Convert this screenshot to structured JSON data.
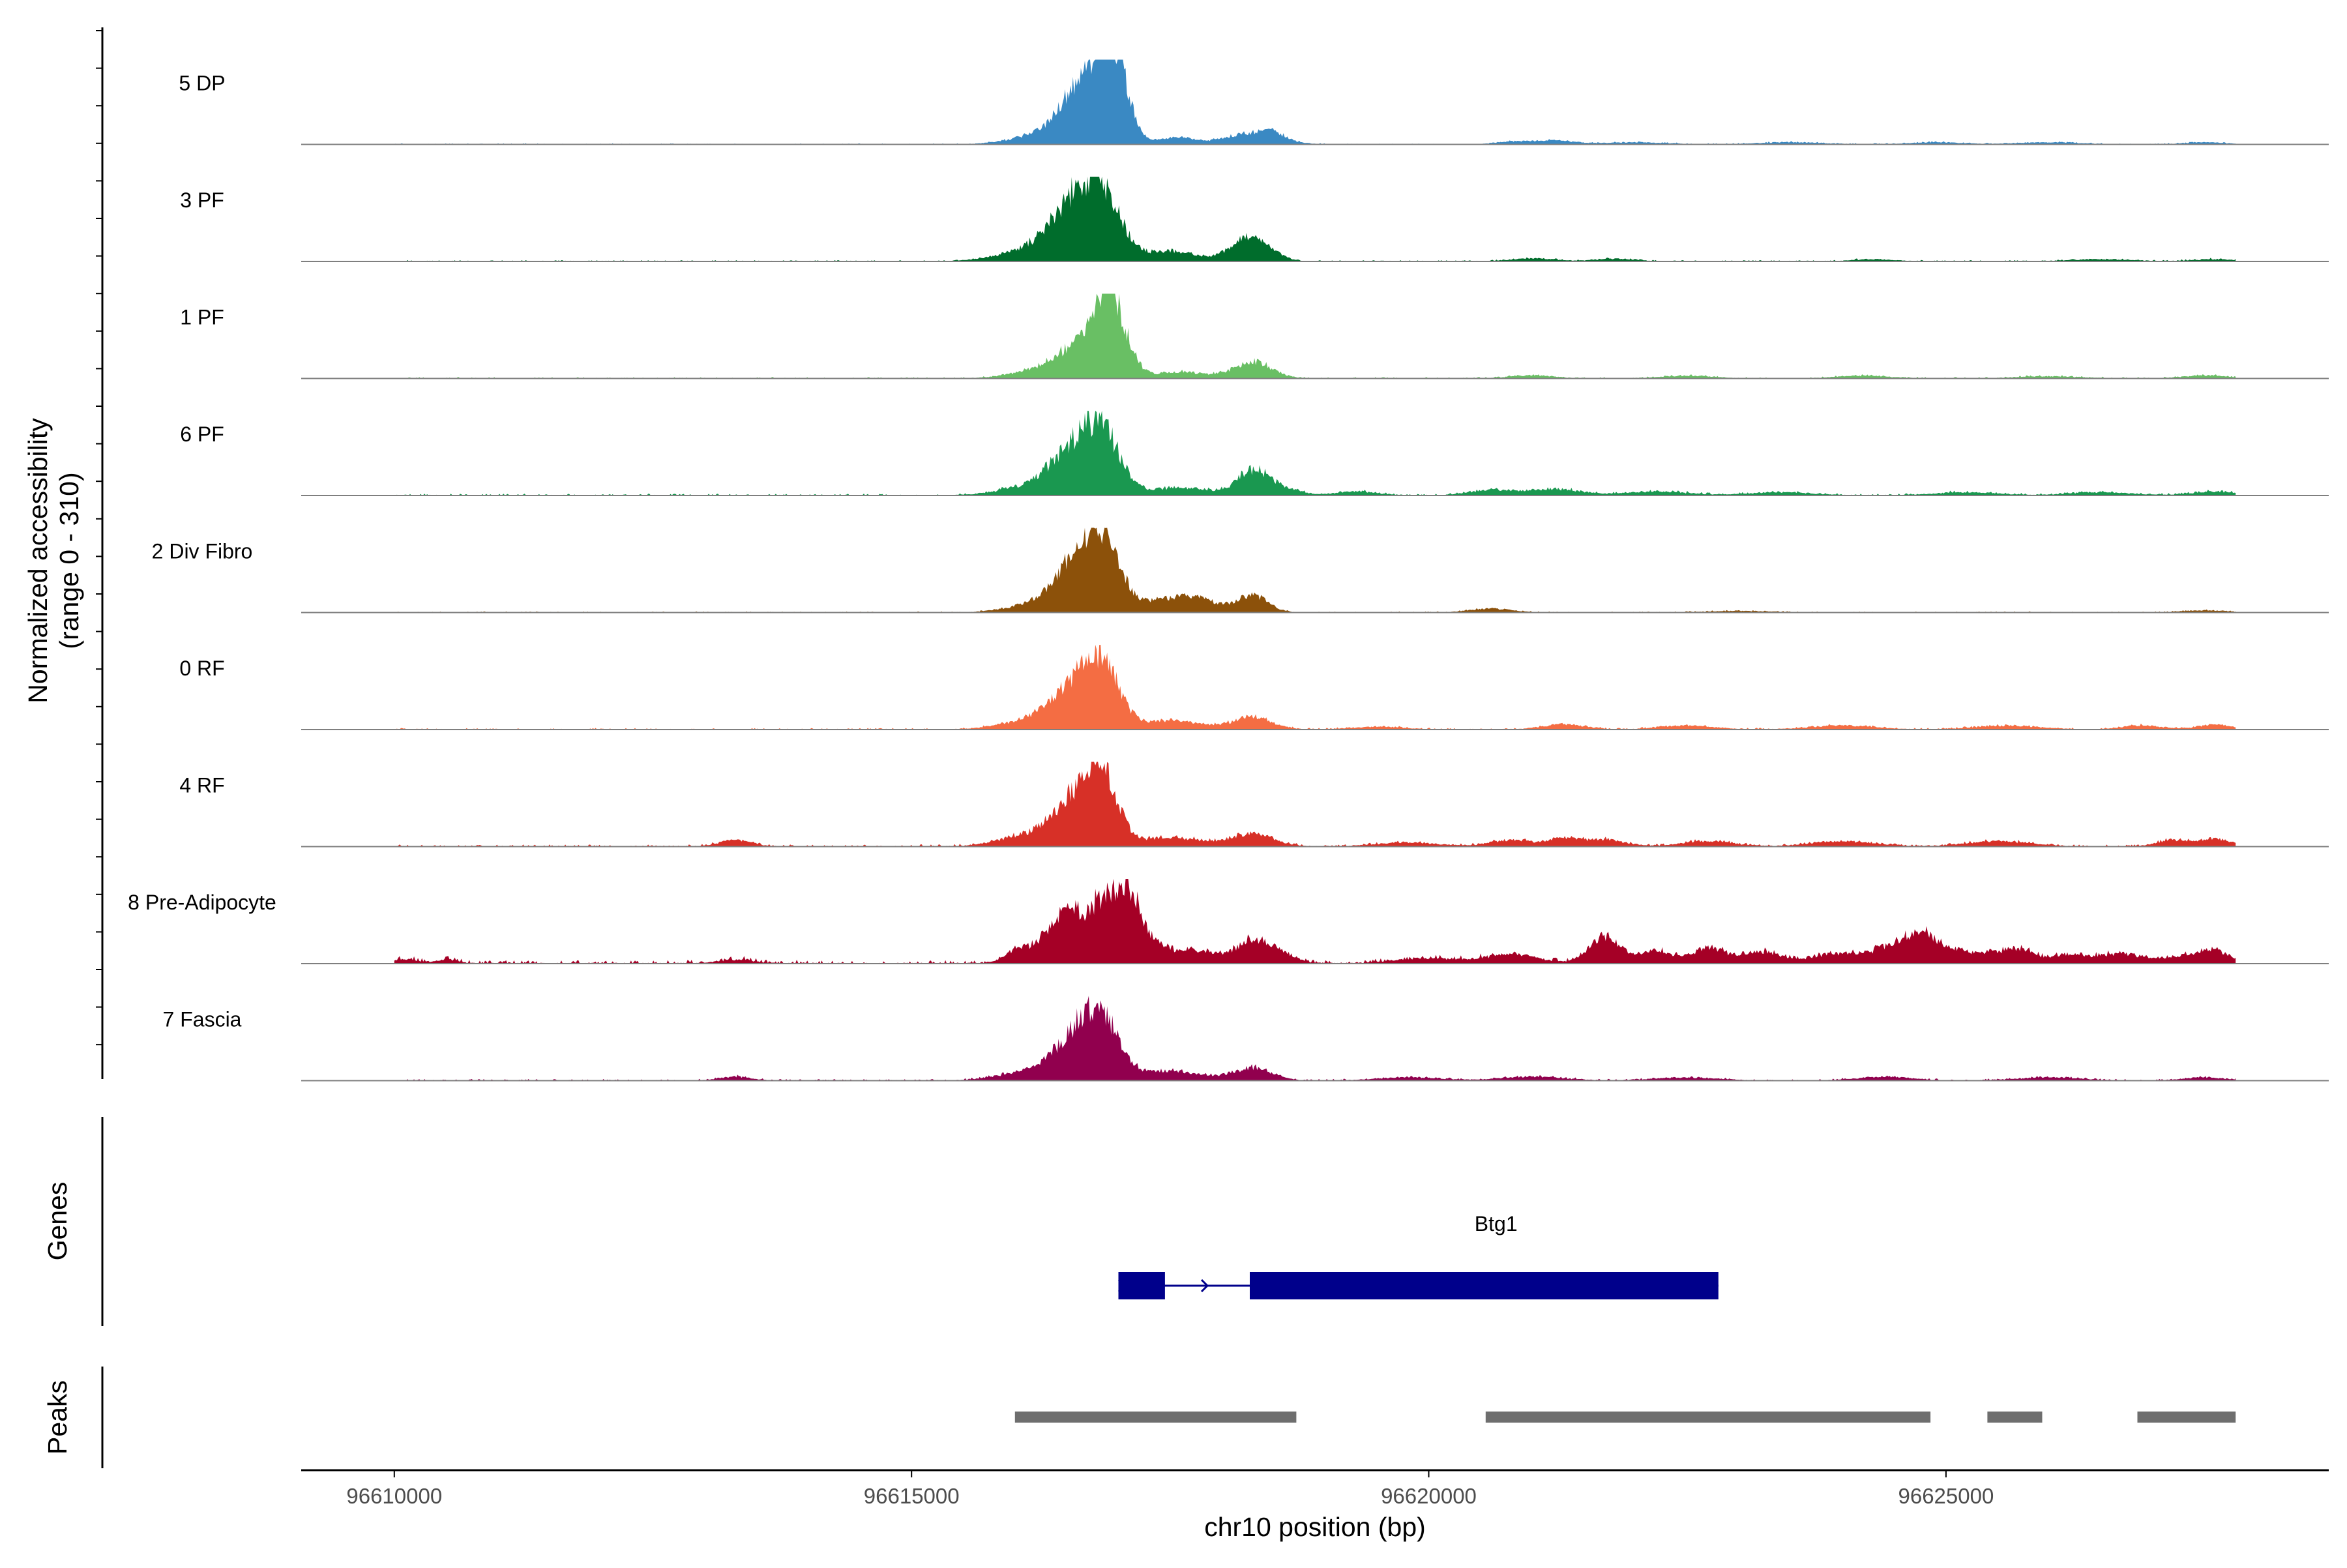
{
  "chart_data": {
    "type": "area",
    "ylabel_line1": "Normalized accessibility",
    "ylabel_line2": "(range 0 - 310)",
    "xlabel": "chr10 position (bp)",
    "xlim": [
      96609100,
      96628700
    ],
    "ylim": [
      0,
      310
    ],
    "xticks": [
      96610000,
      96615000,
      96620000,
      96625000
    ],
    "xtick_labels": [
      "96610000",
      "96615000",
      "96620000",
      "96625000"
    ],
    "track_labels": {
      "genes": "Genes",
      "peaks": "Peaks"
    },
    "tracks": [
      {
        "name": "5 DP",
        "color": "#3A89C3",
        "peaks": [
          [
            96616600,
            180,
            180
          ],
          [
            96616850,
            230,
            150
          ],
          [
            96617000,
            200,
            120
          ],
          [
            96616300,
            40,
            300
          ],
          [
            96617550,
            25,
            200
          ],
          [
            96618300,
            45,
            250
          ],
          [
            96618500,
            20,
            100
          ],
          [
            96621200,
            15,
            200
          ],
          [
            96620800,
            10,
            150
          ],
          [
            96622000,
            8,
            300
          ],
          [
            96623500,
            8,
            300
          ],
          [
            96624900,
            8,
            250
          ],
          [
            96626000,
            8,
            300
          ],
          [
            96627500,
            8,
            200
          ]
        ],
        "noise": 4
      },
      {
        "name": "3 PF",
        "color": "#006D2C",
        "peaks": [
          [
            96616550,
            170,
            200
          ],
          [
            96616850,
            240,
            180
          ],
          [
            96616300,
            60,
            350
          ],
          [
            96617500,
            40,
            250
          ],
          [
            96618200,
            70,
            150
          ],
          [
            96618400,
            50,
            150
          ],
          [
            96621000,
            12,
            200
          ],
          [
            96621800,
            10,
            200
          ],
          [
            96624300,
            8,
            200
          ],
          [
            96626500,
            8,
            300
          ],
          [
            96627600,
            8,
            200
          ]
        ],
        "noise": 5
      },
      {
        "name": "1 PF",
        "color": "#69BF64",
        "peaks": [
          [
            96616600,
            120,
            200
          ],
          [
            96616850,
            220,
            110
          ],
          [
            96617000,
            180,
            130
          ],
          [
            96616200,
            30,
            250
          ],
          [
            96617600,
            25,
            250
          ],
          [
            96618300,
            65,
            180
          ],
          [
            96621000,
            12,
            200
          ],
          [
            96622500,
            10,
            250
          ],
          [
            96624200,
            10,
            250
          ],
          [
            96626000,
            8,
            300
          ],
          [
            96627500,
            12,
            200
          ]
        ],
        "noise": 5
      },
      {
        "name": "6 PF",
        "color": "#1A9850",
        "peaks": [
          [
            96616550,
            150,
            200
          ],
          [
            96616850,
            230,
            170
          ],
          [
            96616200,
            40,
            300
          ],
          [
            96617600,
            30,
            300
          ],
          [
            96618300,
            95,
            150
          ],
          [
            96618600,
            25,
            150
          ],
          [
            96619300,
            15,
            200
          ],
          [
            96620600,
            20,
            200
          ],
          [
            96621200,
            25,
            250
          ],
          [
            96622200,
            15,
            300
          ],
          [
            96623400,
            12,
            300
          ],
          [
            96625200,
            12,
            300
          ],
          [
            96626500,
            12,
            300
          ],
          [
            96627600,
            15,
            200
          ]
        ],
        "noise": 7
      },
      {
        "name": "2 Div Fibro",
        "color": "#8C510A",
        "peaks": [
          [
            96616600,
            160,
            200
          ],
          [
            96616850,
            245,
            170
          ],
          [
            96616300,
            40,
            300
          ],
          [
            96617500,
            50,
            300
          ],
          [
            96617800,
            25,
            200
          ],
          [
            96618300,
            65,
            150
          ],
          [
            96620600,
            15,
            200
          ],
          [
            96623000,
            6,
            300
          ],
          [
            96627500,
            8,
            200
          ]
        ],
        "noise": 4
      },
      {
        "name": "0 RF",
        "color": "#F46D43",
        "peaks": [
          [
            96616550,
            150,
            200
          ],
          [
            96616850,
            230,
            160
          ],
          [
            96616200,
            40,
            300
          ],
          [
            96617500,
            35,
            300
          ],
          [
            96618300,
            50,
            180
          ],
          [
            96619500,
            10,
            250
          ],
          [
            96621300,
            20,
            200
          ],
          [
            96622500,
            15,
            250
          ],
          [
            96624000,
            15,
            300
          ],
          [
            96625600,
            15,
            300
          ],
          [
            96626900,
            15,
            200
          ],
          [
            96627600,
            20,
            150
          ]
        ],
        "noise": 6
      },
      {
        "name": "4 RF",
        "color": "#D73027",
        "peaks": [
          [
            96616600,
            170,
            200
          ],
          [
            96616850,
            230,
            150
          ],
          [
            96616200,
            50,
            300
          ],
          [
            96617500,
            35,
            300
          ],
          [
            96618300,
            50,
            200
          ],
          [
            96613300,
            25,
            150
          ],
          [
            96619800,
            15,
            300
          ],
          [
            96620800,
            25,
            200
          ],
          [
            96621300,
            30,
            150
          ],
          [
            96621700,
            25,
            200
          ],
          [
            96622700,
            20,
            250
          ],
          [
            96624000,
            20,
            300
          ],
          [
            96625500,
            20,
            300
          ],
          [
            96627200,
            25,
            150
          ],
          [
            96627600,
            30,
            150
          ]
        ],
        "noise": 8
      },
      {
        "name": "8 Pre-Adipocyte",
        "color": "#A50026",
        "peaks": [
          [
            96616500,
            170,
            160
          ],
          [
            96616850,
            210,
            160
          ],
          [
            96617100,
            230,
            130
          ],
          [
            96616200,
            50,
            200
          ],
          [
            96617400,
            60,
            200
          ],
          [
            96617800,
            40,
            150
          ],
          [
            96618300,
            90,
            170
          ],
          [
            96618600,
            30,
            120
          ],
          [
            96610100,
            15,
            120
          ],
          [
            96610500,
            15,
            100
          ],
          [
            96613300,
            15,
            150
          ],
          [
            96616000,
            20,
            100
          ],
          [
            96620000,
            20,
            300
          ],
          [
            96620800,
            35,
            250
          ],
          [
            96621700,
            110,
            150
          ],
          [
            96622200,
            50,
            150
          ],
          [
            96622700,
            60,
            150
          ],
          [
            96623200,
            45,
            200
          ],
          [
            96623900,
            35,
            200
          ],
          [
            96624500,
            60,
            250
          ],
          [
            96624800,
            90,
            180
          ],
          [
            96625300,
            40,
            200
          ],
          [
            96625700,
            50,
            150
          ],
          [
            96626200,
            30,
            200
          ],
          [
            96626700,
            35,
            200
          ],
          [
            96627300,
            30,
            200
          ],
          [
            96627600,
            45,
            120
          ]
        ],
        "noise": 14
      },
      {
        "name": "7 Fascia",
        "color": "#91004E",
        "peaks": [
          [
            96616600,
            150,
            200
          ],
          [
            96616850,
            200,
            170
          ],
          [
            96616200,
            40,
            300
          ],
          [
            96617500,
            40,
            300
          ],
          [
            96618300,
            50,
            180
          ],
          [
            96613300,
            15,
            150
          ],
          [
            96619800,
            12,
            300
          ],
          [
            96621000,
            15,
            300
          ],
          [
            96622500,
            12,
            300
          ],
          [
            96624400,
            15,
            250
          ],
          [
            96626000,
            12,
            300
          ],
          [
            96627500,
            12,
            200
          ]
        ],
        "noise": 6
      }
    ],
    "gene": {
      "name": "Btg1",
      "color": "#00008B",
      "start": 96617000,
      "end": 96622800,
      "exons": [
        [
          96617000,
          96617450
        ],
        [
          96618270,
          96622800
        ]
      ]
    },
    "peak_regions": {
      "color": "#6E6E6E",
      "regions": [
        [
          96616000,
          96618720
        ],
        [
          96620550,
          96624850
        ],
        [
          96625400,
          96625930
        ],
        [
          96626850,
          96627800
        ]
      ]
    },
    "signal_range": [
      96610000,
      96627800
    ]
  }
}
